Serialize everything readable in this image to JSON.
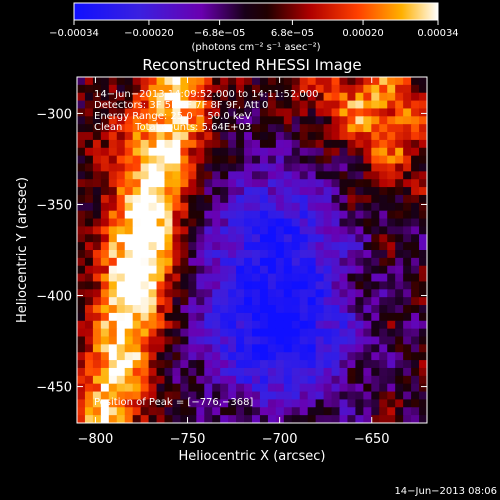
{
  "chart_data": {
    "type": "heatmap",
    "title": "Reconstructed RHESSI Image",
    "xlabel": "Heliocentric X (arcsec)",
    "ylabel": "Heliocentric Y (arcsec)",
    "xlim": [
      -810,
      -620
    ],
    "ylim": [
      -470,
      -280
    ],
    "xticks": [
      -800,
      -750,
      -700,
      -650
    ],
    "xtick_labels": [
      "−800",
      "−750",
      "−700",
      "−650"
    ],
    "yticks": [
      -450,
      -400,
      -350,
      -300
    ],
    "ytick_labels": [
      "−450",
      "−400",
      "−350",
      "−300"
    ],
    "colorbar": {
      "range": [
        -0.00034,
        0.00034
      ],
      "tick_values": [
        -0.00034,
        -0.0002,
        -6.8e-05,
        6.8e-05,
        0.0002,
        0.00034
      ],
      "tick_labels": [
        "−0.00034",
        "−0.00020",
        "−6.8e−05",
        "6.8e−05",
        "0.00020",
        "0.00034"
      ],
      "units": "(photons cm⁻² s⁻¹ asec⁻²)"
    },
    "annotations": [
      "14−Jun−2013 14:09:52.000 to 14:11:52.000",
      "Detectors: 3F 5F 6F 7F 8F 9F, Att 0",
      "Energy Range: 25.0 − 50.0 keV",
      "Clean    Total counts: 5.64E+03"
    ],
    "peak_label": "Position of Peak = [−776,−368]",
    "peak": [
      -776,
      -368
    ],
    "timestamp": "14−Jun−2013 08:06",
    "colormap": "blue-purple-black-red-orange-yellow-white",
    "grid": false
  }
}
